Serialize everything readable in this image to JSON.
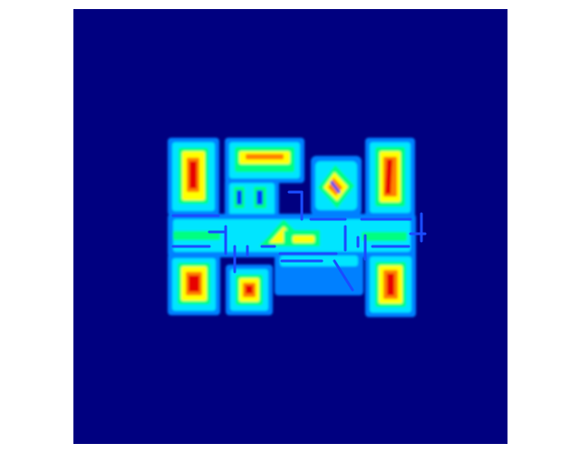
{
  "figure": {
    "kind": "distance-field floor-plan heatmap",
    "colormap": "jet",
    "colors": {
      "page_background": "#ffffff",
      "field_background": "#000080",
      "ring_outer": "#0080ff",
      "ring_cyan": "#00e5ff",
      "ring_yellow": "#ffff00",
      "core_red": "#e80000",
      "wall_blue": "#1a4cff"
    },
    "axes_visible": false,
    "ticks_visible": false,
    "title": "",
    "colorbar_visible": false
  }
}
